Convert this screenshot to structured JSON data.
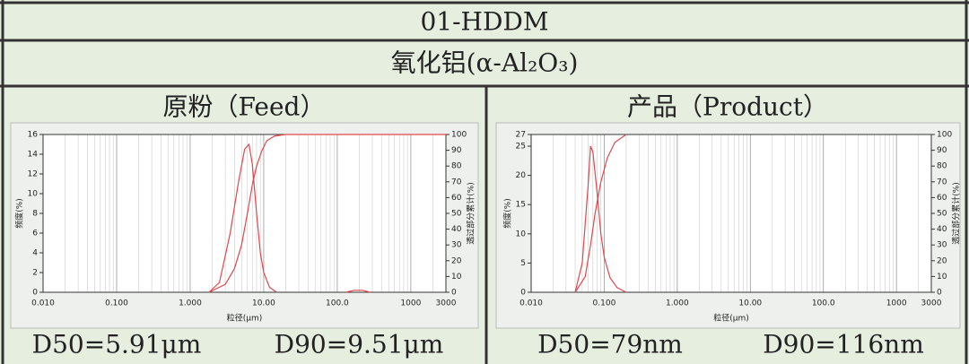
{
  "header": {
    "title": "01-HDDM",
    "material": "氧化铝(α-Al₂O₃)"
  },
  "panels": [
    {
      "title": "原粉（Feed）",
      "d50": "D50=5.91μm",
      "d90": "D90=9.51μm"
    },
    {
      "title": "产品（Product）",
      "d50": "D50=79nm",
      "d90": "D90=116nm"
    }
  ],
  "chart_data": [
    {
      "type": "line",
      "xscale": "log",
      "grid": true,
      "x_label": "粒径(μm)",
      "y_label": "频度(%)",
      "y2_label": "透过部分累计(%)",
      "xlim": [
        0.01,
        3000
      ],
      "xticks": [
        {
          "value": 0.01,
          "label": "0.010"
        },
        {
          "value": 0.1,
          "label": "0.100"
        },
        {
          "value": 1,
          "label": "1.000"
        },
        {
          "value": 10,
          "label": "10.00"
        },
        {
          "value": 100,
          "label": "100.0"
        },
        1000,
        3000
      ],
      "ylim": [
        0,
        16
      ],
      "yticks": [
        0,
        2,
        4,
        6,
        8,
        10,
        12,
        14,
        16
      ],
      "y2lim": [
        0,
        100
      ],
      "y2ticks": [
        0,
        10,
        20,
        30,
        40,
        50,
        60,
        70,
        80,
        90,
        100
      ],
      "series": [
        {
          "color": "#e0474c",
          "x": [
            1.8,
            2.5,
            3.5,
            4.5,
            5.5,
            6.3,
            7,
            8,
            9,
            10,
            12,
            15,
            null,
            130,
            170,
            220,
            280
          ],
          "values": [
            0,
            1,
            6,
            11,
            14.5,
            15,
            13,
            8,
            4,
            2,
            0.5,
            0,
            null,
            0,
            0.2,
            0.2,
            0
          ]
        },
        {
          "color": "#e0474c",
          "axis": "y2",
          "x": [
            1.8,
            3,
            4,
            5,
            6,
            7,
            8,
            9.5,
            11,
            14,
            20,
            3000
          ],
          "values": [
            0,
            5,
            15,
            30,
            50,
            68,
            80,
            90,
            96,
            99,
            100,
            100
          ]
        }
      ]
    },
    {
      "type": "line",
      "xscale": "log",
      "grid": true,
      "x_label": "粒径(μm)",
      "y_label": "频度(%)",
      "y2_label": "透过部分累计(%)",
      "xlim": [
        0.01,
        3000
      ],
      "xticks": [
        {
          "value": 0.01,
          "label": "0.010"
        },
        {
          "value": 0.1,
          "label": "0.100"
        },
        {
          "value": 1,
          "label": "1.000"
        },
        {
          "value": 10,
          "label": "10.00"
        },
        {
          "value": 100,
          "label": "100.0"
        },
        1000,
        3000
      ],
      "ylim": [
        0,
        27
      ],
      "yticks": [
        0,
        5,
        10,
        15,
        20,
        25,
        27
      ],
      "y2lim": [
        0,
        100
      ],
      "y2ticks": [
        0,
        10,
        20,
        30,
        40,
        50,
        60,
        70,
        80,
        90,
        100
      ],
      "series": [
        {
          "color": "#e0474c",
          "x": [
            0.04,
            0.05,
            0.06,
            0.065,
            0.07,
            0.08,
            0.09,
            0.1,
            0.12,
            0.15,
            0.2
          ],
          "values": [
            0,
            5,
            18,
            25,
            24,
            17,
            10,
            6,
            2.5,
            0.8,
            0
          ]
        },
        {
          "color": "#e0474c",
          "axis": "y2",
          "x": [
            0.04,
            0.055,
            0.065,
            0.075,
            0.09,
            0.11,
            0.14,
            0.2
          ],
          "values": [
            0,
            10,
            30,
            50,
            70,
            85,
            95,
            100
          ]
        }
      ]
    }
  ]
}
